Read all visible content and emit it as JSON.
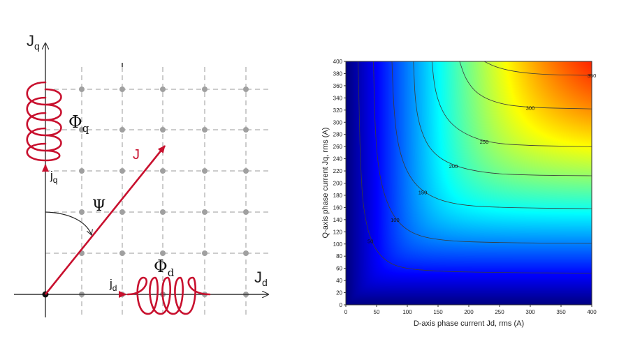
{
  "vector_diagram": {
    "axis_q_label": "J",
    "axis_q_sub": "q",
    "axis_d_label": "J",
    "axis_d_sub": "d",
    "vector_label": "J",
    "angle_label": "Ψ",
    "flux_q_label": "Φ",
    "flux_q_sub": "q",
    "flux_d_label": "Φ",
    "flux_d_sub": "d",
    "current_q_label": "j",
    "current_q_sub": "q",
    "current_d_label": "j",
    "current_d_sub": "d",
    "colors": {
      "accent": "#c8102e",
      "grid": "#9a9a9a",
      "axis": "#333333"
    }
  },
  "chart_data": {
    "type": "heatmap",
    "subtype": "contour",
    "xlabel": "D-axis phase current Jd, rms (A)",
    "ylabel": "Q-axis phase current Jq, rms (A)",
    "xlim": [
      0,
      400
    ],
    "ylim": [
      0,
      400
    ],
    "x_ticks": [
      0,
      50,
      100,
      150,
      200,
      250,
      300,
      350,
      400
    ],
    "y_ticks": [
      0,
      20,
      40,
      60,
      80,
      100,
      120,
      140,
      160,
      180,
      200,
      220,
      240,
      260,
      280,
      300,
      320,
      340,
      360,
      380,
      400
    ],
    "contour_levels": [
      50,
      100,
      150,
      200,
      250,
      300,
      350
    ],
    "contour_labels": [
      "50",
      "100",
      "150",
      "200",
      "250",
      "300",
      "350"
    ],
    "colormap": "jet",
    "value_range": [
      0,
      380
    ],
    "contours": [
      {
        "level": 50,
        "points": [
          [
            20,
            400
          ],
          [
            22,
            300
          ],
          [
            24,
            230
          ],
          [
            28,
            160
          ],
          [
            40,
            105
          ],
          [
            60,
            75
          ],
          [
            90,
            60
          ],
          [
            150,
            55
          ],
          [
            250,
            53
          ],
          [
            400,
            52
          ]
        ]
      },
      {
        "level": 100,
        "points": [
          [
            45,
            400
          ],
          [
            47,
            300
          ],
          [
            52,
            230
          ],
          [
            62,
            180
          ],
          [
            80,
            140
          ],
          [
            110,
            115
          ],
          [
            160,
            105
          ],
          [
            250,
            102
          ],
          [
            400,
            101
          ]
        ]
      },
      {
        "level": 150,
        "points": [
          [
            75,
            400
          ],
          [
            78,
            320
          ],
          [
            85,
            260
          ],
          [
            100,
            215
          ],
          [
            125,
            185
          ],
          [
            165,
            167
          ],
          [
            230,
            160
          ],
          [
            400,
            158
          ]
        ]
      },
      {
        "level": 200,
        "points": [
          [
            110,
            400
          ],
          [
            113,
            330
          ],
          [
            122,
            285
          ],
          [
            140,
            250
          ],
          [
            175,
            228
          ],
          [
            230,
            216
          ],
          [
            300,
            213
          ],
          [
            400,
            212
          ]
        ]
      },
      {
        "level": 250,
        "points": [
          [
            140,
            400
          ],
          [
            145,
            350
          ],
          [
            160,
            310
          ],
          [
            185,
            285
          ],
          [
            225,
            268
          ],
          [
            280,
            262
          ],
          [
            400,
            260
          ]
        ]
      },
      {
        "level": 300,
        "points": [
          [
            185,
            400
          ],
          [
            195,
            370
          ],
          [
            215,
            345
          ],
          [
            250,
            330
          ],
          [
            300,
            324
          ],
          [
            400,
            322
          ]
        ]
      },
      {
        "level": 350,
        "points": [
          [
            225,
            400
          ],
          [
            245,
            390
          ],
          [
            280,
            382
          ],
          [
            330,
            378
          ],
          [
            400,
            377
          ]
        ]
      }
    ]
  }
}
